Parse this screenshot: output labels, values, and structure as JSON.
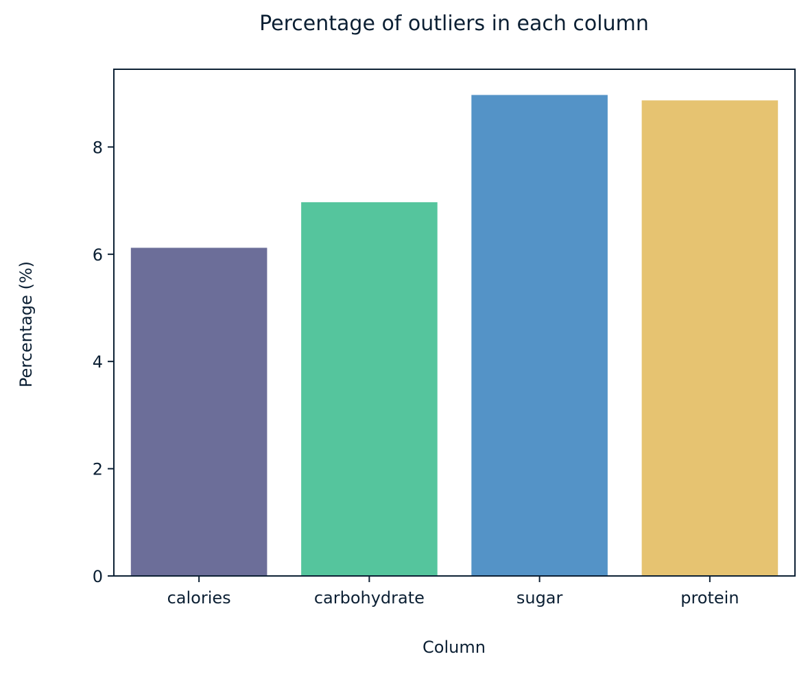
{
  "chart_data": {
    "type": "bar",
    "title": "Percentage of outliers in each column",
    "xlabel": "Column",
    "ylabel": "Percentage (%)",
    "categories": [
      "calories",
      "carbohydrate",
      "sugar",
      "protein"
    ],
    "values": [
      6.12,
      6.97,
      8.97,
      8.87
    ],
    "colors": [
      "#6c6e99",
      "#55c59d",
      "#5493c7",
      "#e6c371"
    ],
    "ylim": [
      0,
      9.45
    ],
    "yticks": [
      0,
      2,
      4,
      6,
      8
    ],
    "grid": false,
    "legend": "none"
  },
  "style": {
    "axis_color": "#0b1f33",
    "text_color": "#0b1f33",
    "background": "#ffffff"
  }
}
